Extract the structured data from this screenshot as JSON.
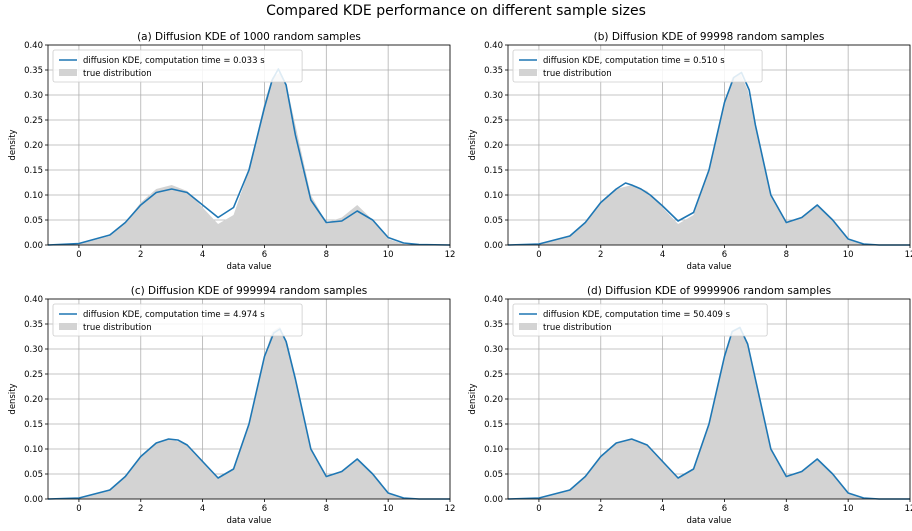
{
  "figure": {
    "title": "Compared KDE performance on different sample sizes"
  },
  "colors": {
    "kde_line": "#1f77b4",
    "true_fill": "#d3d3d3",
    "grid": "#b0b0b0"
  },
  "chart_data": [
    {
      "type": "area",
      "title": "(a) Diffusion KDE of 1000 random samples",
      "xlabel": "data value",
      "ylabel": "density",
      "xlim": [
        -1,
        12
      ],
      "ylim": [
        0,
        0.4
      ],
      "xticks": [
        0,
        2,
        4,
        6,
        8,
        10,
        12
      ],
      "yticks": [
        0.0,
        0.05,
        0.1,
        0.15,
        0.2,
        0.25,
        0.3,
        0.35,
        0.4
      ],
      "grid": true,
      "legend_position": "top-left",
      "series": [
        {
          "name": "diffusion KDE, computation time = 0.033 s",
          "kind": "line",
          "x": [
            -1,
            0,
            1,
            1.5,
            2,
            2.5,
            3,
            3.5,
            4,
            4.5,
            5,
            5.5,
            6,
            6.25,
            6.45,
            6.7,
            7,
            7.5,
            8,
            8.5,
            9,
            9.5,
            10,
            10.5,
            11,
            12
          ],
          "y": [
            0.0,
            0.003,
            0.02,
            0.045,
            0.08,
            0.105,
            0.112,
            0.105,
            0.08,
            0.055,
            0.075,
            0.15,
            0.275,
            0.33,
            0.352,
            0.32,
            0.22,
            0.09,
            0.045,
            0.048,
            0.068,
            0.05,
            0.015,
            0.004,
            0.001,
            0.0
          ]
        },
        {
          "name": "true distribution",
          "kind": "area",
          "x": [
            -1,
            0,
            1,
            1.5,
            2,
            2.5,
            3,
            3.5,
            4,
            4.5,
            5,
            5.5,
            6,
            6.25,
            6.5,
            6.75,
            7,
            7.5,
            8,
            8.5,
            9,
            9.5,
            10,
            10.5,
            11,
            12
          ],
          "y": [
            0.0,
            0.002,
            0.018,
            0.045,
            0.085,
            0.112,
            0.12,
            0.108,
            0.075,
            0.042,
            0.06,
            0.15,
            0.285,
            0.335,
            0.345,
            0.31,
            0.24,
            0.1,
            0.045,
            0.055,
            0.08,
            0.05,
            0.012,
            0.002,
            0.0,
            0.0
          ]
        }
      ]
    },
    {
      "type": "area",
      "title": "(b) Diffusion KDE of 99998 random samples",
      "xlabel": "data value",
      "ylabel": "density",
      "xlim": [
        -1,
        12
      ],
      "ylim": [
        0,
        0.4
      ],
      "xticks": [
        0,
        2,
        4,
        6,
        8,
        10,
        12
      ],
      "yticks": [
        0.0,
        0.05,
        0.1,
        0.15,
        0.2,
        0.25,
        0.3,
        0.35,
        0.4
      ],
      "grid": true,
      "legend_position": "top-left",
      "series": [
        {
          "name": "diffusion KDE, computation time = 0.510 s",
          "kind": "line",
          "x": [
            -1,
            0,
            1,
            1.5,
            2,
            2.5,
            2.8,
            3,
            3.3,
            3.6,
            4,
            4.5,
            5,
            5.5,
            6,
            6.3,
            6.55,
            6.8,
            7,
            7.5,
            8,
            8.5,
            9,
            9.5,
            10,
            10.5,
            11,
            12
          ],
          "y": [
            0.0,
            0.002,
            0.018,
            0.045,
            0.085,
            0.112,
            0.124,
            0.12,
            0.112,
            0.1,
            0.078,
            0.048,
            0.065,
            0.15,
            0.285,
            0.335,
            0.345,
            0.31,
            0.24,
            0.1,
            0.045,
            0.055,
            0.08,
            0.05,
            0.012,
            0.002,
            0.0,
            0.0
          ]
        },
        {
          "name": "true distribution",
          "kind": "area",
          "x": [
            -1,
            0,
            1,
            1.5,
            2,
            2.5,
            3,
            3.5,
            4,
            4.5,
            5,
            5.5,
            6,
            6.25,
            6.5,
            6.75,
            7,
            7.5,
            8,
            8.5,
            9,
            9.5,
            10,
            10.5,
            11,
            12
          ],
          "y": [
            0.0,
            0.002,
            0.018,
            0.045,
            0.085,
            0.112,
            0.12,
            0.108,
            0.075,
            0.042,
            0.06,
            0.15,
            0.285,
            0.335,
            0.345,
            0.31,
            0.24,
            0.1,
            0.045,
            0.055,
            0.08,
            0.05,
            0.012,
            0.002,
            0.0,
            0.0
          ]
        }
      ]
    },
    {
      "type": "area",
      "title": "(c) Diffusion KDE of 999994 random samples",
      "xlabel": "data value",
      "ylabel": "density",
      "xlim": [
        -1,
        12
      ],
      "ylim": [
        0,
        0.4
      ],
      "xticks": [
        0,
        2,
        4,
        6,
        8,
        10,
        12
      ],
      "yticks": [
        0.0,
        0.05,
        0.1,
        0.15,
        0.2,
        0.25,
        0.3,
        0.35,
        0.4
      ],
      "grid": true,
      "legend_position": "top-left",
      "series": [
        {
          "name": "diffusion KDE, computation time = 4.974 s",
          "kind": "line",
          "x": [
            -1,
            0,
            1,
            1.5,
            2,
            2.5,
            2.9,
            3.2,
            3.5,
            4,
            4.5,
            5,
            5.5,
            6,
            6.3,
            6.5,
            6.7,
            7,
            7.5,
            8,
            8.5,
            9,
            9.5,
            10,
            10.5,
            11,
            12
          ],
          "y": [
            0.0,
            0.002,
            0.018,
            0.045,
            0.085,
            0.112,
            0.12,
            0.118,
            0.108,
            0.075,
            0.042,
            0.06,
            0.15,
            0.285,
            0.332,
            0.34,
            0.315,
            0.24,
            0.1,
            0.045,
            0.055,
            0.08,
            0.05,
            0.012,
            0.002,
            0.0,
            0.0
          ]
        },
        {
          "name": "true distribution",
          "kind": "area",
          "x": [
            -1,
            0,
            1,
            1.5,
            2,
            2.5,
            3,
            3.5,
            4,
            4.5,
            5,
            5.5,
            6,
            6.25,
            6.5,
            6.75,
            7,
            7.5,
            8,
            8.5,
            9,
            9.5,
            10,
            10.5,
            11,
            12
          ],
          "y": [
            0.0,
            0.002,
            0.018,
            0.045,
            0.085,
            0.112,
            0.12,
            0.108,
            0.075,
            0.042,
            0.06,
            0.15,
            0.285,
            0.335,
            0.345,
            0.31,
            0.24,
            0.1,
            0.045,
            0.055,
            0.08,
            0.05,
            0.012,
            0.002,
            0.0,
            0.0
          ]
        }
      ]
    },
    {
      "type": "area",
      "title": "(d) Diffusion KDE of 9999906 random samples",
      "xlabel": "data value",
      "ylabel": "density",
      "xlim": [
        -1,
        12
      ],
      "ylim": [
        0,
        0.4
      ],
      "xticks": [
        0,
        2,
        4,
        6,
        8,
        10,
        12
      ],
      "yticks": [
        0.0,
        0.05,
        0.1,
        0.15,
        0.2,
        0.25,
        0.3,
        0.35,
        0.4
      ],
      "grid": true,
      "legend_position": "top-left",
      "series": [
        {
          "name": "diffusion KDE, computation time = 50.409 s",
          "kind": "line",
          "x": [
            -1,
            0,
            1,
            1.5,
            2,
            2.5,
            3,
            3.5,
            4,
            4.5,
            5,
            5.5,
            6,
            6.25,
            6.5,
            6.75,
            7,
            7.5,
            8,
            8.5,
            9,
            9.5,
            10,
            10.5,
            11,
            12
          ],
          "y": [
            0.0,
            0.002,
            0.018,
            0.045,
            0.085,
            0.112,
            0.12,
            0.108,
            0.075,
            0.042,
            0.06,
            0.15,
            0.285,
            0.335,
            0.343,
            0.31,
            0.24,
            0.1,
            0.045,
            0.055,
            0.08,
            0.05,
            0.012,
            0.002,
            0.0,
            0.0
          ]
        },
        {
          "name": "true distribution",
          "kind": "area",
          "x": [
            -1,
            0,
            1,
            1.5,
            2,
            2.5,
            3,
            3.5,
            4,
            4.5,
            5,
            5.5,
            6,
            6.25,
            6.5,
            6.75,
            7,
            7.5,
            8,
            8.5,
            9,
            9.5,
            10,
            10.5,
            11,
            12
          ],
          "y": [
            0.0,
            0.002,
            0.018,
            0.045,
            0.085,
            0.112,
            0.12,
            0.108,
            0.075,
            0.042,
            0.06,
            0.15,
            0.285,
            0.335,
            0.345,
            0.31,
            0.24,
            0.1,
            0.045,
            0.055,
            0.08,
            0.05,
            0.012,
            0.002,
            0.0,
            0.0
          ]
        }
      ]
    }
  ]
}
